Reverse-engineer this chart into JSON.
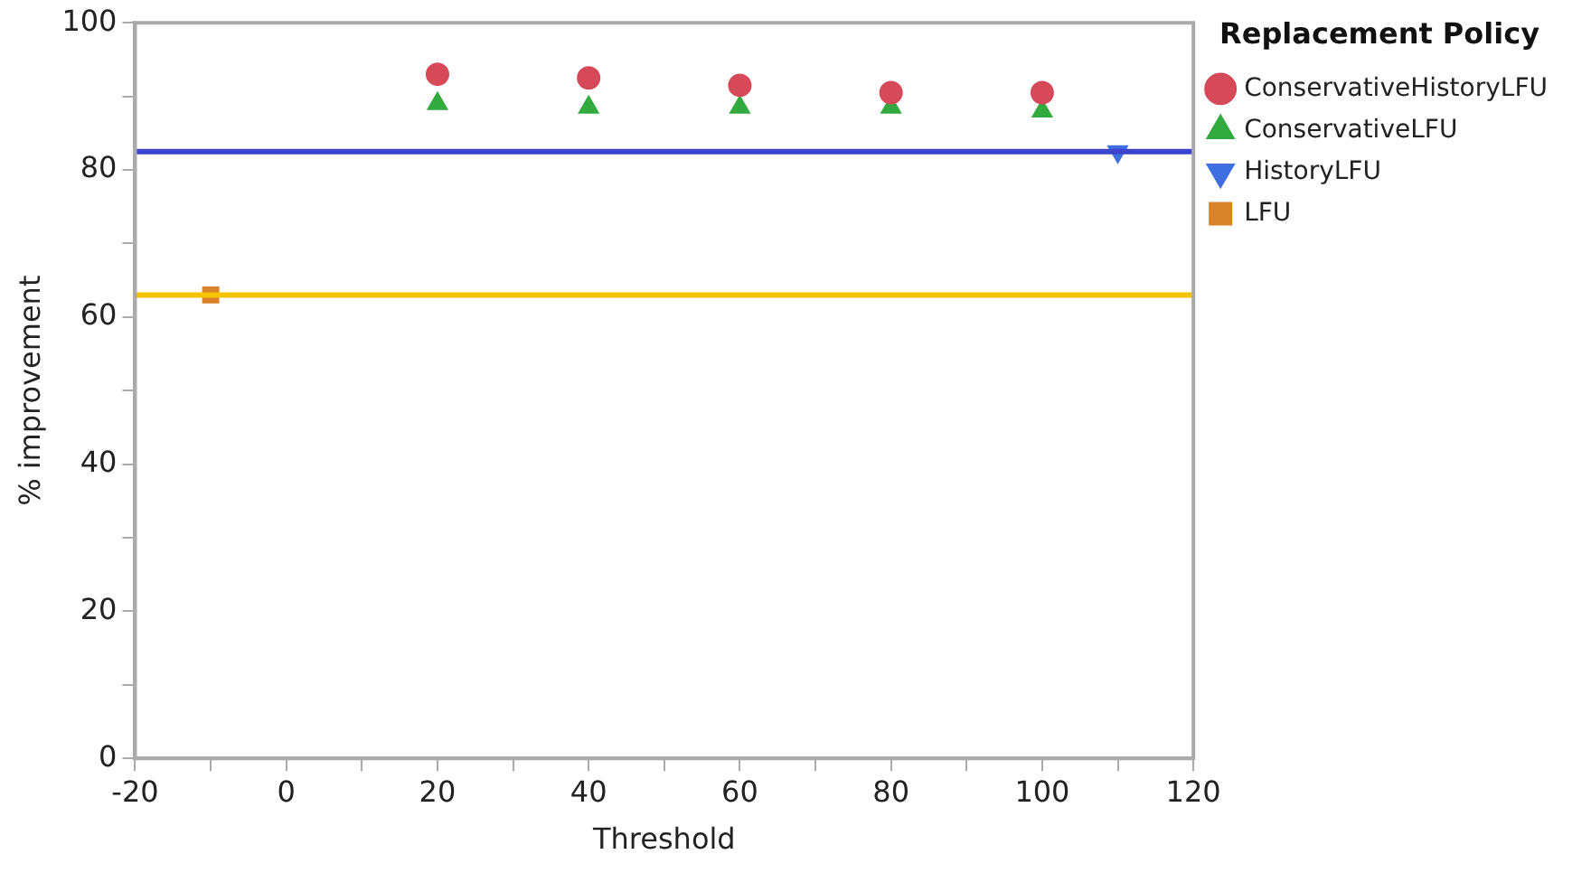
{
  "chart_data": {
    "type": "scatter",
    "xlabel": "Threshold",
    "ylabel": "% improvement",
    "legend_title": "Replacement Policy",
    "legend": "top right",
    "grid": false,
    "xlim": [
      -20,
      120
    ],
    "xticks": [
      -20,
      {
        "value": -10,
        "label": null
      },
      0,
      {
        "value": 10,
        "label": null
      },
      20,
      {
        "value": 30,
        "label": null
      },
      40,
      {
        "value": 50,
        "label": null
      },
      60,
      {
        "value": 70,
        "label": null
      },
      80,
      {
        "value": 90,
        "label": null
      },
      100,
      {
        "value": 110,
        "label": null
      },
      120
    ],
    "ylim": [
      0,
      100
    ],
    "yticks": [
      0,
      {
        "value": 10,
        "label": null
      },
      20,
      {
        "value": 30,
        "label": null
      },
      40,
      {
        "value": 50,
        "label": null
      },
      60,
      {
        "value": 70,
        "label": null
      },
      80,
      {
        "value": 90,
        "label": null
      },
      100
    ],
    "series": [
      {
        "name": "ConservativeHistoryLFU",
        "color": "#d64958",
        "marker": "circle",
        "x": [
          20,
          40,
          60,
          80,
          100
        ],
        "values": [
          93,
          92.5,
          91.5,
          90.5,
          90.5
        ]
      },
      {
        "name": "ConservativeLFU",
        "color": "#33aa3f",
        "marker": "triangle",
        "x": [
          20,
          40,
          60,
          80,
          100
        ],
        "values": [
          89,
          88.5,
          88.5,
          88.5,
          88
        ]
      },
      {
        "name": "HistoryLFU",
        "color": "#3f6fe0",
        "marker": "triangle-down",
        "x": [
          110
        ],
        "values": [
          82.5
        ]
      },
      {
        "name": "LFU",
        "color": "#d8822a",
        "marker": "square",
        "x": [
          -10
        ],
        "values": [
          63
        ]
      }
    ],
    "ref_lines": [
      {
        "axis": "y",
        "value": 82.5,
        "color": "#3a44cc"
      },
      {
        "axis": "y",
        "value": 63,
        "color": "#f5c400"
      }
    ]
  }
}
